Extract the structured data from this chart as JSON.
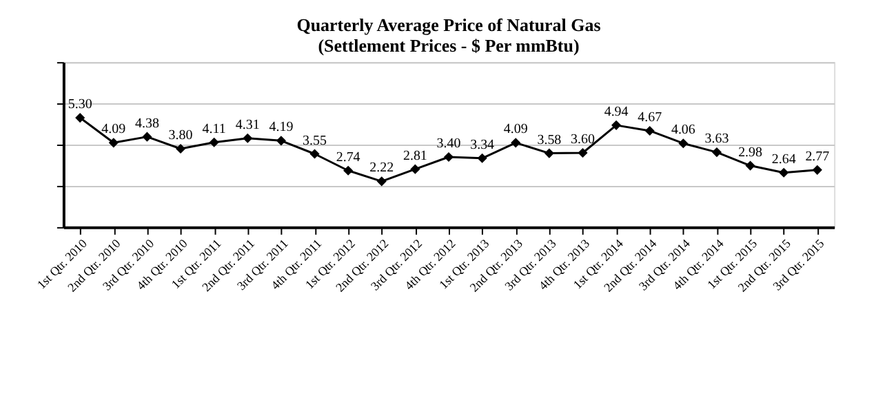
{
  "chart_data": {
    "type": "line",
    "title": [
      "Quarterly Average Price of Natural Gas",
      "(Settlement Prices - $ Per mmBtu)"
    ],
    "categories": [
      "1st Qtr. 2010",
      "2nd Qtr. 2010",
      "3rd Qtr. 2010",
      "4th Qtr. 2010",
      "1st Qtr. 2011",
      "2nd Qtr. 2011",
      "3rd Qtr. 2011",
      "4th Qtr. 2011",
      "1st Qtr. 2012",
      "2nd Qtr. 2012",
      "3rd Qtr. 2012",
      "4th Qtr. 2012",
      "1st Qtr. 2013",
      "2nd Qtr. 2013",
      "3rd Qtr. 2013",
      "4th Qtr. 2013",
      "1st Qtr. 2014",
      "2nd Qtr. 2014",
      "3rd Qtr. 2014",
      "4th Qtr. 2014",
      "1st Qtr. 2015",
      "2nd Qtr. 2015",
      "3rd Qtr. 2015"
    ],
    "series": [
      {
        "color": "#000000",
        "values": [
          5.3,
          4.09,
          4.38,
          3.8,
          4.11,
          4.31,
          4.19,
          3.55,
          2.74,
          2.22,
          2.81,
          3.4,
          3.34,
          4.09,
          3.58,
          3.6,
          4.94,
          4.67,
          4.06,
          3.63,
          2.98,
          2.64,
          2.77
        ],
        "value_labels": [
          "5.30",
          "4.09",
          "4.38",
          "3.80",
          "4.11",
          "4.31",
          "4.19",
          "3.55",
          "2.74",
          "2.22",
          "2.81",
          "3.40",
          "3.34",
          "4.09",
          "3.58",
          "3.60",
          "4.94",
          "4.67",
          "4.06",
          "3.63",
          "2.98",
          "2.64",
          "2.77"
        ]
      }
    ],
    "ylim": [
      0,
      8
    ],
    "grid": "y",
    "tick_labels": "x",
    "marker": "diamond",
    "line_style": "solid",
    "legend": false
  }
}
